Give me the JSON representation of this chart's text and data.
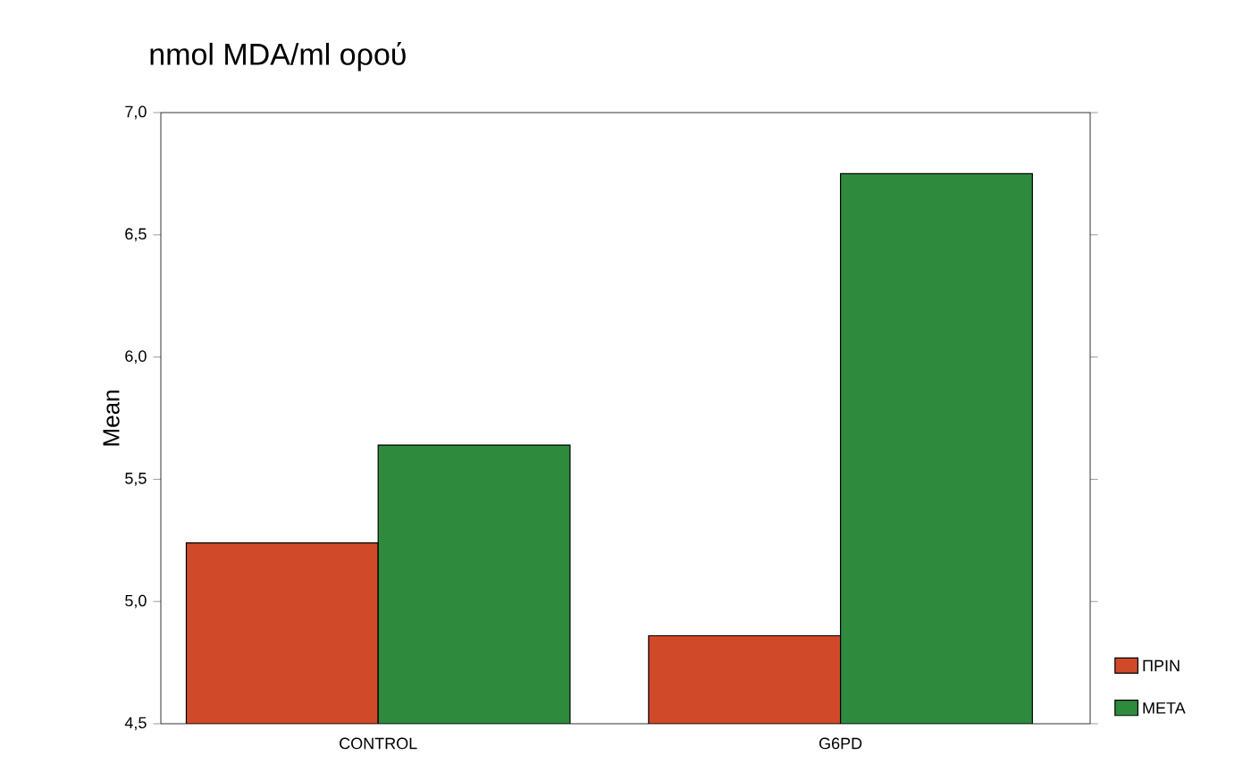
{
  "chart_data": {
    "type": "bar",
    "title": "nmol MDA/ml ορού",
    "ylabel": "Mean",
    "categories": [
      "CONTROL",
      "G6PD"
    ],
    "series": [
      {
        "name": "ΠΡΙΝ",
        "color": "#d04a2a",
        "values": [
          5.24,
          4.86
        ]
      },
      {
        "name": "META",
        "color": "#2e8b3e",
        "values": [
          5.64,
          6.75
        ]
      }
    ],
    "ylim": [
      4.5,
      7.0
    ],
    "yticks": [
      {
        "value": 4.5,
        "label": "4,5"
      },
      {
        "value": 5.0,
        "label": "5,0"
      },
      {
        "value": 5.5,
        "label": "5,5"
      },
      {
        "value": 6.0,
        "label": "6,0"
      },
      {
        "value": 6.5,
        "label": "6,5"
      },
      {
        "value": 7.0,
        "label": "7,0"
      }
    ],
    "grid": false,
    "legend": "right"
  }
}
